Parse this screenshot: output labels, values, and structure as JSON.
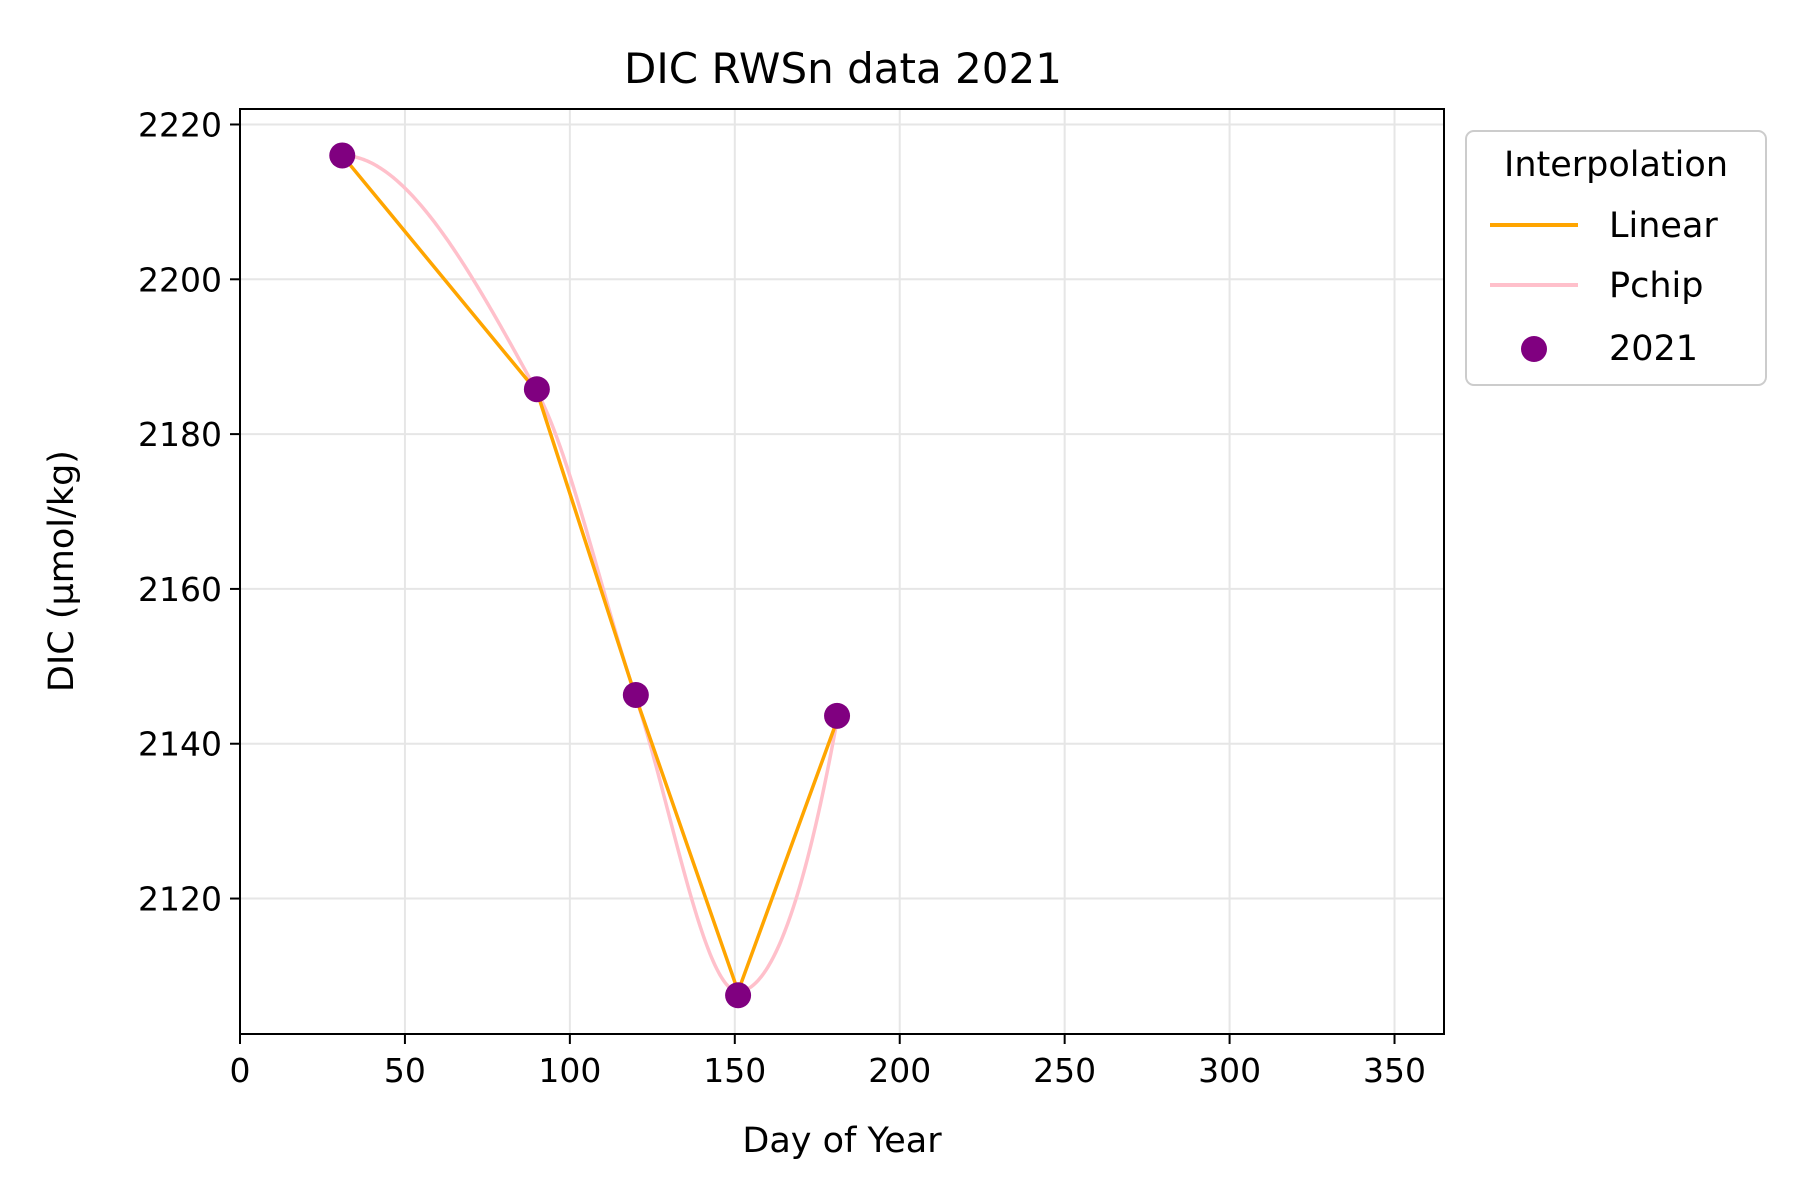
{
  "chart_data": {
    "type": "line",
    "title": "DIC RWSn data 2021",
    "xlabel": "Day of Year",
    "ylabel": "DIC (µmol/kg)",
    "xlim": [
      0,
      365
    ],
    "ylim": [
      2102.5,
      2222
    ],
    "x_ticks": [
      0,
      50,
      100,
      150,
      200,
      250,
      300,
      350
    ],
    "y_ticks": [
      2120,
      2140,
      2160,
      2180,
      2200,
      2220
    ],
    "grid": true,
    "legend": {
      "title": "Interpolation",
      "placement": "outside upper-right",
      "entries": [
        "Linear",
        "Pchip",
        "2021"
      ]
    },
    "colors": {
      "linear": "#ffa500",
      "pchip": "#ffc0cb",
      "points": "#800080",
      "grid": "#e6e6e6"
    },
    "series": [
      {
        "name": "Linear",
        "kind": "line",
        "x": [
          31,
          90,
          120,
          151,
          181
        ],
        "y": [
          2216,
          2185.5,
          2146,
          2108,
          2143
        ]
      },
      {
        "name": "Pchip",
        "kind": "curve",
        "x": [
          31,
          90,
          120,
          151,
          181
        ],
        "y": [
          2216,
          2185.5,
          2146,
          2108,
          2143
        ]
      },
      {
        "name": "2021",
        "kind": "scatter",
        "x": [
          31,
          90,
          120,
          151,
          181
        ],
        "y": [
          2216,
          2185.8,
          2146.3,
          2107.5,
          2143.6
        ]
      }
    ]
  }
}
